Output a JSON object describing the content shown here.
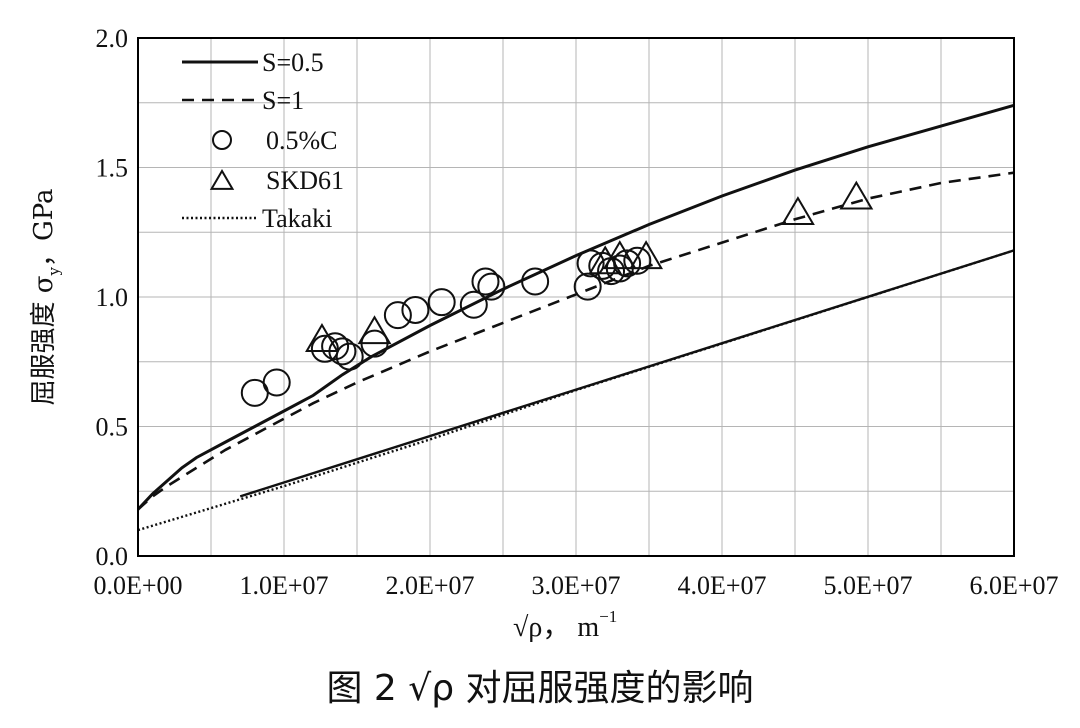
{
  "chart_data": {
    "type": "scatter",
    "xlabel": "√ρ， m",
    "xlabel_sup": "−1",
    "ylabel": "屈服强度 σ，GPa",
    "ylabel_sub": "y",
    "xlim": [
      0,
      60000000
    ],
    "ylim": [
      0,
      2.0
    ],
    "x_ticks": [
      0,
      10000000,
      20000000,
      30000000,
      40000000,
      50000000,
      60000000
    ],
    "x_tick_labels": [
      "0.0E+00",
      "1.0E+07",
      "2.0E+07",
      "3.0E+07",
      "4.0E+07",
      "5.0E+07",
      "6.0E+07"
    ],
    "y_ticks": [
      0,
      0.5,
      1.0,
      1.5,
      2.0
    ],
    "y_tick_labels": [
      "0.0",
      "0.5",
      "1.0",
      "1.5",
      "2.0"
    ],
    "grid": true,
    "legend_position": "top-left",
    "caption": "图 2  √ρ 对屈服强度的影响",
    "series": [
      {
        "name": "S=0.5",
        "style": "solid",
        "points": [
          [
            0,
            0.18
          ],
          [
            1000000,
            0.24
          ],
          [
            2000000,
            0.29
          ],
          [
            3000000,
            0.34
          ],
          [
            4000000,
            0.38
          ],
          [
            6000000,
            0.44
          ],
          [
            8000000,
            0.5
          ],
          [
            10000000,
            0.56
          ],
          [
            12000000,
            0.62
          ],
          [
            14000000,
            0.7
          ],
          [
            16000000,
            0.77
          ],
          [
            20000000,
            0.89
          ],
          [
            25000000,
            1.03
          ],
          [
            30000000,
            1.16
          ],
          [
            35000000,
            1.28
          ],
          [
            40000000,
            1.39
          ],
          [
            45000000,
            1.49
          ],
          [
            50000000,
            1.58
          ],
          [
            55000000,
            1.66
          ],
          [
            60000000,
            1.74
          ]
        ]
      },
      {
        "name": "S=1",
        "style": "dashed",
        "points": [
          [
            0,
            0.18
          ],
          [
            1000000,
            0.23
          ],
          [
            2000000,
            0.27
          ],
          [
            4000000,
            0.34
          ],
          [
            6000000,
            0.41
          ],
          [
            8000000,
            0.47
          ],
          [
            10000000,
            0.53
          ],
          [
            12000000,
            0.59
          ],
          [
            15000000,
            0.67
          ],
          [
            20000000,
            0.79
          ],
          [
            25000000,
            0.9
          ],
          [
            30000000,
            1.01
          ],
          [
            35000000,
            1.12
          ],
          [
            40000000,
            1.21
          ],
          [
            45000000,
            1.3
          ],
          [
            50000000,
            1.38
          ],
          [
            55000000,
            1.44
          ],
          [
            60000000,
            1.48
          ]
        ]
      },
      {
        "name": "Takaki",
        "style": "dotted",
        "points": [
          [
            0,
            0.1
          ],
          [
            10000000,
            0.27
          ],
          [
            20000000,
            0.45
          ],
          [
            30000000,
            0.64
          ],
          [
            40000000,
            0.82
          ],
          [
            50000000,
            1.0
          ],
          [
            60000000,
            1.18
          ]
        ]
      },
      {
        "name": "",
        "style": "solid-thin",
        "points": [
          [
            7000000,
            0.23
          ],
          [
            60000000,
            1.18
          ]
        ]
      },
      {
        "name": "0.5%C",
        "marker": "circle",
        "points": [
          [
            8000000,
            0.63
          ],
          [
            9500000,
            0.67
          ],
          [
            12800000,
            0.8
          ],
          [
            13500000,
            0.81
          ],
          [
            14000000,
            0.79
          ],
          [
            14500000,
            0.77
          ],
          [
            16200000,
            0.82
          ],
          [
            17800000,
            0.93
          ],
          [
            19000000,
            0.95
          ],
          [
            20800000,
            0.98
          ],
          [
            23000000,
            0.97
          ],
          [
            23800000,
            1.06
          ],
          [
            24200000,
            1.04
          ],
          [
            27200000,
            1.06
          ],
          [
            30800000,
            1.04
          ],
          [
            31000000,
            1.13
          ],
          [
            31800000,
            1.12
          ],
          [
            32400000,
            1.1
          ],
          [
            33000000,
            1.11
          ],
          [
            33500000,
            1.13
          ],
          [
            34200000,
            1.14
          ]
        ]
      },
      {
        "name": "SKD61",
        "marker": "triangle",
        "points": [
          [
            12600000,
            0.83
          ],
          [
            16200000,
            0.86
          ],
          [
            32000000,
            1.13
          ],
          [
            33000000,
            1.15
          ],
          [
            34800000,
            1.15
          ],
          [
            45200000,
            1.32
          ],
          [
            49200000,
            1.38
          ]
        ]
      }
    ]
  },
  "legend": [
    {
      "label": "S=0.5",
      "type": "solid"
    },
    {
      "label": "S=1",
      "type": "dashed"
    },
    {
      "label": "0.5%C",
      "type": "circle"
    },
    {
      "label": "SKD61",
      "type": "triangle"
    },
    {
      "label": "Takaki",
      "type": "dotted"
    }
  ]
}
